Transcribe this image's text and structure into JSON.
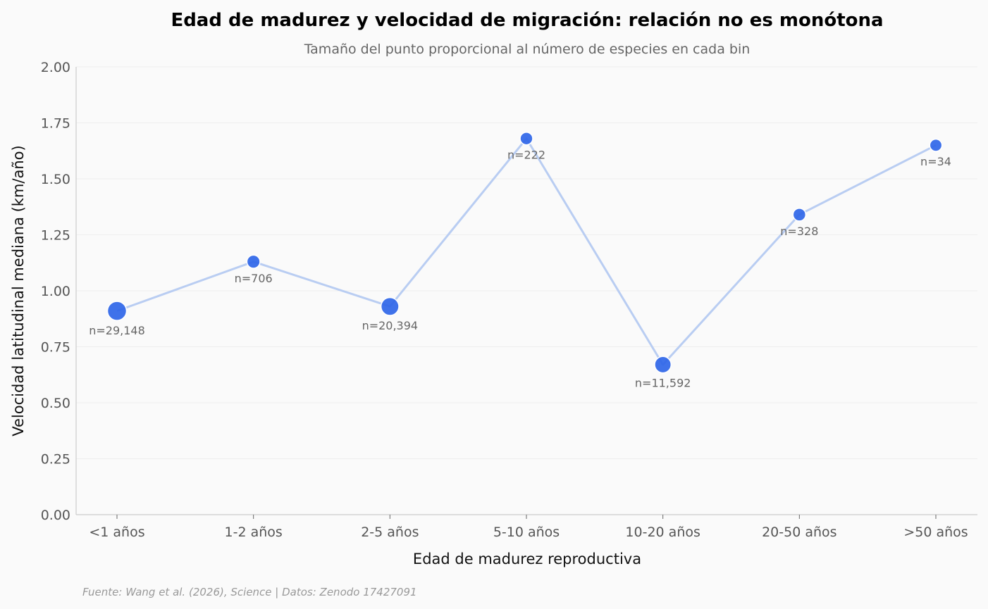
{
  "chart_data": {
    "type": "line",
    "title": "Edad de madurez y velocidad de migración: relación no es monótona",
    "subtitle": "Tamaño del punto proporcional al número de especies en cada bin",
    "xlabel": "Edad de madurez reproductiva",
    "ylabel": "Velocidad latitudinal mediana (km/año)",
    "categories": [
      "<1 años",
      "1-2 años",
      "2-5 años",
      "5-10 años",
      "10-20 años",
      "20-50 años",
      ">50 años"
    ],
    "series": [
      {
        "values": [
          0.91,
          1.13,
          0.93,
          1.68,
          0.67,
          1.34,
          1.65
        ],
        "counts": [
          29148,
          706,
          20394,
          222,
          11592,
          328,
          34
        ],
        "count_labels": [
          "n=29,148",
          "n=706",
          "n=20,394",
          "n=222",
          "n=11,592",
          "n=328",
          "n=34"
        ]
      }
    ],
    "ylim": [
      0,
      2.0
    ],
    "yticks": [
      "0.00",
      "0.25",
      "0.50",
      "0.75",
      "1.00",
      "1.25",
      "1.50",
      "1.75",
      "2.00"
    ],
    "grid": true,
    "legend": "none",
    "colors": {
      "point": "#2f66e8",
      "line": "#b9cdf2"
    }
  },
  "source": "Fuente: Wang et al. (2026), Science | Datos: Zenodo 17427091"
}
